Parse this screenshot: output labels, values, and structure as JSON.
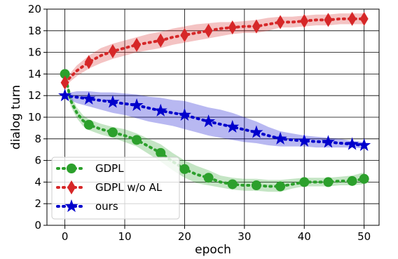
{
  "chart_data": {
    "type": "line",
    "title": "",
    "xlabel": "epoch",
    "ylabel": "dialog turn",
    "xlim": [
      -3,
      52.5
    ],
    "ylim": [
      0,
      20
    ],
    "xticks": [
      0,
      10,
      20,
      30,
      40,
      50
    ],
    "yticks": [
      0,
      2,
      4,
      6,
      8,
      10,
      12,
      14,
      16,
      18,
      20
    ],
    "grid": true,
    "legend_position": "lower-left",
    "series": [
      {
        "name": "GDPL",
        "color": "#2ca02c",
        "marker": "circle",
        "x": [
          0,
          4,
          8,
          12,
          16,
          20,
          24,
          28,
          32,
          36,
          40,
          44,
          48,
          50
        ],
        "y": [
          14.0,
          9.3,
          8.6,
          7.9,
          6.7,
          5.2,
          4.4,
          3.8,
          3.7,
          3.6,
          4.0,
          4.0,
          4.1,
          4.3
        ],
        "line": [
          [
            0,
            14.0
          ],
          [
            1,
            11.5
          ],
          [
            2,
            10.4
          ],
          [
            3,
            9.7
          ],
          [
            4,
            9.3
          ],
          [
            6,
            8.9
          ],
          [
            8,
            8.6
          ],
          [
            10,
            8.3
          ],
          [
            12,
            7.9
          ],
          [
            14,
            7.3
          ],
          [
            16,
            6.7
          ],
          [
            18,
            5.9
          ],
          [
            20,
            5.2
          ],
          [
            22,
            4.7
          ],
          [
            24,
            4.4
          ],
          [
            26,
            4.0
          ],
          [
            28,
            3.8
          ],
          [
            30,
            3.7
          ],
          [
            32,
            3.7
          ],
          [
            34,
            3.6
          ],
          [
            36,
            3.6
          ],
          [
            38,
            3.8
          ],
          [
            40,
            4.0
          ],
          [
            42,
            4.0
          ],
          [
            44,
            4.0
          ],
          [
            46,
            4.1
          ],
          [
            48,
            4.1
          ],
          [
            50,
            4.3
          ]
        ],
        "band_upper": [
          [
            0,
            14.3
          ],
          [
            1,
            12.0
          ],
          [
            2,
            10.9
          ],
          [
            3,
            10.2
          ],
          [
            4,
            9.8
          ],
          [
            6,
            9.4
          ],
          [
            8,
            9.1
          ],
          [
            10,
            8.9
          ],
          [
            12,
            8.5
          ],
          [
            14,
            8.0
          ],
          [
            16,
            7.5
          ],
          [
            18,
            6.7
          ],
          [
            20,
            6.0
          ],
          [
            22,
            5.5
          ],
          [
            24,
            5.1
          ],
          [
            26,
            4.6
          ],
          [
            28,
            4.4
          ],
          [
            30,
            4.3
          ],
          [
            32,
            4.3
          ],
          [
            34,
            4.2
          ],
          [
            36,
            4.2
          ],
          [
            38,
            4.3
          ],
          [
            40,
            4.4
          ],
          [
            42,
            4.4
          ],
          [
            44,
            4.4
          ],
          [
            46,
            4.5
          ],
          [
            48,
            4.6
          ],
          [
            50,
            4.9
          ]
        ],
        "band_lower": [
          [
            0,
            13.7
          ],
          [
            1,
            11.0
          ],
          [
            2,
            9.9
          ],
          [
            3,
            9.2
          ],
          [
            4,
            8.8
          ],
          [
            6,
            8.4
          ],
          [
            8,
            8.1
          ],
          [
            10,
            7.7
          ],
          [
            12,
            7.3
          ],
          [
            14,
            6.6
          ],
          [
            16,
            5.9
          ],
          [
            18,
            5.1
          ],
          [
            20,
            4.4
          ],
          [
            22,
            3.9
          ],
          [
            24,
            3.7
          ],
          [
            26,
            3.5
          ],
          [
            28,
            3.3
          ],
          [
            30,
            3.2
          ],
          [
            32,
            3.2
          ],
          [
            34,
            3.1
          ],
          [
            36,
            3.1
          ],
          [
            38,
            3.4
          ],
          [
            40,
            3.6
          ],
          [
            42,
            3.6
          ],
          [
            44,
            3.6
          ],
          [
            46,
            3.7
          ],
          [
            48,
            3.7
          ],
          [
            50,
            3.8
          ]
        ]
      },
      {
        "name": "GDPL w/o AL",
        "color": "#d62728",
        "marker": "thin_diamond",
        "x": [
          0,
          4,
          8,
          12,
          16,
          20,
          24,
          28,
          32,
          36,
          40,
          44,
          48,
          50
        ],
        "y": [
          13.2,
          15.1,
          16.1,
          16.7,
          17.1,
          17.6,
          18.0,
          18.3,
          18.4,
          18.8,
          18.9,
          19.0,
          19.1,
          19.1
        ],
        "line": [
          [
            0,
            13.2
          ],
          [
            2,
            14.3
          ],
          [
            4,
            15.1
          ],
          [
            6,
            15.7
          ],
          [
            8,
            16.1
          ],
          [
            10,
            16.4
          ],
          [
            12,
            16.7
          ],
          [
            14,
            16.9
          ],
          [
            16,
            17.1
          ],
          [
            18,
            17.4
          ],
          [
            20,
            17.6
          ],
          [
            22,
            17.8
          ],
          [
            24,
            18.0
          ],
          [
            26,
            18.2
          ],
          [
            28,
            18.3
          ],
          [
            30,
            18.4
          ],
          [
            32,
            18.4
          ],
          [
            34,
            18.6
          ],
          [
            36,
            18.8
          ],
          [
            38,
            18.8
          ],
          [
            40,
            18.9
          ],
          [
            42,
            19.0
          ],
          [
            44,
            19.0
          ],
          [
            46,
            19.1
          ],
          [
            48,
            19.1
          ],
          [
            50,
            19.1
          ]
        ],
        "band_upper": [
          [
            0,
            13.5
          ],
          [
            2,
            14.8
          ],
          [
            4,
            15.7
          ],
          [
            6,
            16.4
          ],
          [
            8,
            16.8
          ],
          [
            10,
            17.1
          ],
          [
            12,
            17.4
          ],
          [
            14,
            17.7
          ],
          [
            16,
            17.9
          ],
          [
            18,
            18.2
          ],
          [
            20,
            18.4
          ],
          [
            22,
            18.6
          ],
          [
            24,
            18.7
          ],
          [
            26,
            18.8
          ],
          [
            28,
            18.8
          ],
          [
            30,
            18.9
          ],
          [
            32,
            19.0
          ],
          [
            34,
            19.2
          ],
          [
            36,
            19.3
          ],
          [
            38,
            19.3
          ],
          [
            40,
            19.4
          ],
          [
            42,
            19.5
          ],
          [
            44,
            19.5
          ],
          [
            46,
            19.6
          ],
          [
            48,
            19.6
          ],
          [
            50,
            19.6
          ]
        ],
        "band_lower": [
          [
            0,
            12.9
          ],
          [
            2,
            13.8
          ],
          [
            4,
            14.5
          ],
          [
            6,
            15.0
          ],
          [
            8,
            15.4
          ],
          [
            10,
            15.7
          ],
          [
            12,
            16.0
          ],
          [
            14,
            16.2
          ],
          [
            16,
            16.4
          ],
          [
            18,
            16.7
          ],
          [
            20,
            16.9
          ],
          [
            22,
            17.1
          ],
          [
            24,
            17.3
          ],
          [
            26,
            17.5
          ],
          [
            28,
            17.7
          ],
          [
            30,
            17.8
          ],
          [
            32,
            17.8
          ],
          [
            34,
            18.0
          ],
          [
            36,
            18.3
          ],
          [
            38,
            18.3
          ],
          [
            40,
            18.4
          ],
          [
            42,
            18.5
          ],
          [
            44,
            18.5
          ],
          [
            46,
            18.6
          ],
          [
            48,
            18.6
          ],
          [
            50,
            18.6
          ]
        ]
      },
      {
        "name": "ours",
        "color": "#0000cc",
        "marker": "star",
        "x": [
          0,
          4,
          8,
          12,
          16,
          20,
          24,
          28,
          32,
          36,
          40,
          44,
          48,
          50
        ],
        "y": [
          12.0,
          11.7,
          11.4,
          11.1,
          10.6,
          10.2,
          9.6,
          9.1,
          8.6,
          8.0,
          7.8,
          7.7,
          7.5,
          7.4
        ],
        "line": [
          [
            0,
            12.0
          ],
          [
            2,
            11.85
          ],
          [
            4,
            11.7
          ],
          [
            6,
            11.55
          ],
          [
            8,
            11.4
          ],
          [
            10,
            11.25
          ],
          [
            12,
            11.1
          ],
          [
            14,
            10.85
          ],
          [
            16,
            10.6
          ],
          [
            18,
            10.4
          ],
          [
            20,
            10.2
          ],
          [
            22,
            9.9
          ],
          [
            24,
            9.6
          ],
          [
            26,
            9.35
          ],
          [
            28,
            9.1
          ],
          [
            30,
            8.85
          ],
          [
            32,
            8.6
          ],
          [
            34,
            8.3
          ],
          [
            36,
            8.0
          ],
          [
            38,
            7.9
          ],
          [
            40,
            7.8
          ],
          [
            42,
            7.75
          ],
          [
            44,
            7.7
          ],
          [
            46,
            7.6
          ],
          [
            48,
            7.5
          ],
          [
            50,
            7.4
          ]
        ],
        "band_upper": [
          [
            0,
            12.2
          ],
          [
            2,
            12.4
          ],
          [
            4,
            12.4
          ],
          [
            6,
            12.3
          ],
          [
            8,
            12.3
          ],
          [
            10,
            12.2
          ],
          [
            12,
            12.1
          ],
          [
            14,
            11.9
          ],
          [
            16,
            11.8
          ],
          [
            18,
            11.6
          ],
          [
            20,
            11.5
          ],
          [
            22,
            11.2
          ],
          [
            24,
            10.9
          ],
          [
            26,
            10.7
          ],
          [
            28,
            10.4
          ],
          [
            30,
            10.0
          ],
          [
            32,
            9.6
          ],
          [
            34,
            9.1
          ],
          [
            36,
            8.7
          ],
          [
            38,
            8.5
          ],
          [
            40,
            8.3
          ],
          [
            42,
            8.2
          ],
          [
            44,
            8.1
          ],
          [
            46,
            8.0
          ],
          [
            48,
            7.8
          ],
          [
            50,
            7.7
          ]
        ],
        "band_lower": [
          [
            0,
            11.8
          ],
          [
            2,
            11.3
          ],
          [
            4,
            11.0
          ],
          [
            6,
            10.7
          ],
          [
            8,
            10.4
          ],
          [
            10,
            10.2
          ],
          [
            12,
            9.9
          ],
          [
            14,
            9.6
          ],
          [
            16,
            9.4
          ],
          [
            18,
            9.2
          ],
          [
            20,
            8.9
          ],
          [
            22,
            8.6
          ],
          [
            24,
            8.3
          ],
          [
            26,
            8.1
          ],
          [
            28,
            7.9
          ],
          [
            30,
            7.7
          ],
          [
            32,
            7.6
          ],
          [
            34,
            7.4
          ],
          [
            36,
            7.3
          ],
          [
            38,
            7.3
          ],
          [
            40,
            7.3
          ],
          [
            42,
            7.2
          ],
          [
            44,
            7.2
          ],
          [
            46,
            7.2
          ],
          [
            48,
            7.2
          ],
          [
            50,
            7.1
          ]
        ]
      }
    ]
  }
}
